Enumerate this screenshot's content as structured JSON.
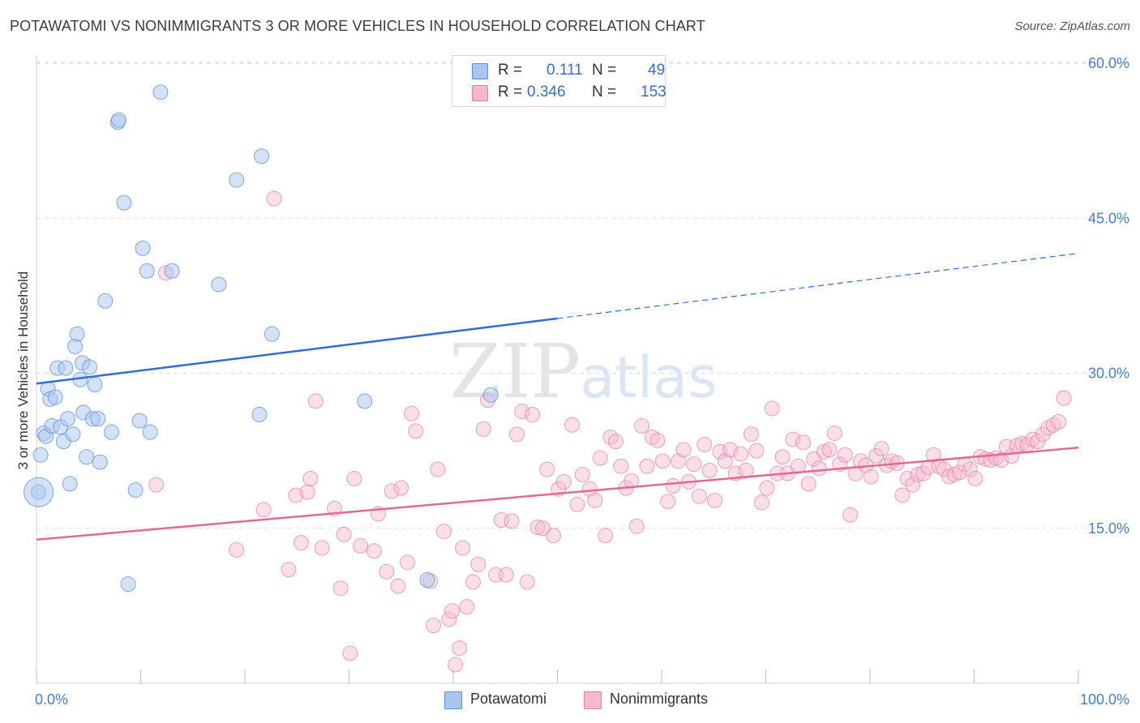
{
  "title": "POTAWATOMI VS NONIMMIGRANTS 3 OR MORE VEHICLES IN HOUSEHOLD CORRELATION CHART",
  "source": "Source: ZipAtlas.com",
  "watermark": {
    "zip": "ZIP",
    "atlas": "atlas"
  },
  "legend_top": [
    {
      "r_key": "R =",
      "r_value": "0.111",
      "n_key": "N =",
      "n_value": "49",
      "color": "#a9c6ef",
      "border": "#5b8fd6"
    },
    {
      "r_key": "R =",
      "r_value": "0.346",
      "n_key": "N =",
      "n_value": "153",
      "color": "#f6b9cb",
      "border": "#e27fa0"
    }
  ],
  "legend_bottom": [
    {
      "label": "Potawatomi",
      "color": "#a9c6ef",
      "border": "#5b8fd6"
    },
    {
      "label": "Nonimmigrants",
      "color": "#f6b9cb",
      "border": "#e27fa0"
    }
  ],
  "chart_data": {
    "type": "scatter",
    "xlabel": "",
    "ylabel": "3 or more Vehicles in Household",
    "xlim": [
      0,
      100
    ],
    "ylim": [
      0,
      60
    ],
    "x_tick_labels": [
      {
        "value": 0,
        "label": "0.0%"
      },
      {
        "value": 100,
        "label": "100.0%"
      }
    ],
    "y_tick_labels": [
      {
        "value": 15,
        "label": "15.0%"
      },
      {
        "value": 30,
        "label": "30.0%"
      },
      {
        "value": 45,
        "label": "45.0%"
      },
      {
        "value": 60,
        "label": "60.0%"
      }
    ],
    "grid": true,
    "legend_position": "top-center",
    "series": [
      {
        "name": "Potawatomi",
        "color": "#a9c6ef",
        "stroke": "#5b8fd6",
        "line_color": "#2f6fcf",
        "trend": {
          "x0": 0,
          "y0": 29.0,
          "x1": 50,
          "y1": 35.3,
          "x_end": 100,
          "y_end": 41.6
        },
        "points": [
          [
            0.2,
            18.5
          ],
          [
            0.4,
            22.1
          ],
          [
            0.7,
            24.2
          ],
          [
            0.9,
            23.9
          ],
          [
            1.1,
            28.5
          ],
          [
            1.3,
            27.5
          ],
          [
            1.5,
            24.9
          ],
          [
            1.8,
            27.7
          ],
          [
            2.0,
            30.5
          ],
          [
            2.3,
            24.8
          ],
          [
            2.6,
            23.4
          ],
          [
            2.8,
            30.5
          ],
          [
            3.0,
            25.6
          ],
          [
            3.2,
            19.3
          ],
          [
            3.5,
            24.1
          ],
          [
            3.7,
            32.6
          ],
          [
            3.9,
            33.8
          ],
          [
            4.2,
            29.4
          ],
          [
            4.4,
            31.0
          ],
          [
            4.5,
            26.2
          ],
          [
            4.8,
            21.9
          ],
          [
            5.1,
            30.6
          ],
          [
            5.4,
            25.6
          ],
          [
            5.6,
            28.9
          ],
          [
            5.9,
            25.6
          ],
          [
            6.1,
            21.4
          ],
          [
            6.6,
            37.0
          ],
          [
            7.2,
            24.3
          ],
          [
            7.8,
            54.3
          ],
          [
            7.9,
            54.5
          ],
          [
            8.4,
            46.5
          ],
          [
            8.8,
            9.6
          ],
          [
            9.5,
            18.7
          ],
          [
            9.9,
            25.4
          ],
          [
            10.2,
            42.1
          ],
          [
            10.6,
            39.9
          ],
          [
            10.9,
            24.3
          ],
          [
            11.9,
            57.2
          ],
          [
            13.0,
            39.9
          ],
          [
            17.5,
            38.6
          ],
          [
            19.2,
            48.7
          ],
          [
            21.4,
            26.0
          ],
          [
            21.6,
            51.0
          ],
          [
            22.6,
            33.8
          ],
          [
            31.5,
            27.3
          ],
          [
            37.5,
            10.0
          ],
          [
            43.6,
            27.9
          ]
        ]
      },
      {
        "name": "Nonimmigrants",
        "color": "#f6b9cb",
        "stroke": "#e27fa0",
        "line_color": "#e06a93",
        "trend": {
          "x0": 0,
          "y0": 13.9,
          "x1": 100,
          "y1": 22.8
        },
        "points": [
          [
            11.5,
            19.2
          ],
          [
            12.4,
            39.7
          ],
          [
            19.2,
            12.9
          ],
          [
            21.8,
            16.8
          ],
          [
            22.8,
            46.9
          ],
          [
            24.2,
            11.0
          ],
          [
            24.9,
            18.2
          ],
          [
            25.4,
            13.6
          ],
          [
            26.0,
            18.5
          ],
          [
            26.3,
            19.8
          ],
          [
            26.8,
            27.3
          ],
          [
            27.4,
            13.1
          ],
          [
            28.6,
            16.9
          ],
          [
            29.2,
            9.2
          ],
          [
            29.5,
            14.4
          ],
          [
            30.1,
            2.9
          ],
          [
            30.5,
            19.8
          ],
          [
            31.1,
            13.3
          ],
          [
            32.4,
            12.8
          ],
          [
            32.8,
            16.4
          ],
          [
            33.6,
            10.8
          ],
          [
            34.1,
            18.6
          ],
          [
            34.7,
            9.4
          ],
          [
            35.0,
            18.9
          ],
          [
            35.6,
            11.7
          ],
          [
            36.0,
            26.1
          ],
          [
            36.4,
            24.4
          ],
          [
            37.8,
            9.9
          ],
          [
            38.1,
            5.6
          ],
          [
            38.5,
            20.7
          ],
          [
            39.1,
            14.7
          ],
          [
            39.6,
            6.2
          ],
          [
            39.9,
            7.0
          ],
          [
            40.2,
            1.8
          ],
          [
            40.6,
            3.4
          ],
          [
            40.9,
            13.1
          ],
          [
            41.3,
            7.4
          ],
          [
            41.9,
            9.8
          ],
          [
            42.4,
            11.5
          ],
          [
            42.9,
            24.6
          ],
          [
            43.3,
            27.4
          ],
          [
            44.1,
            10.5
          ],
          [
            44.6,
            15.8
          ],
          [
            45.1,
            10.5
          ],
          [
            45.6,
            15.7
          ],
          [
            46.1,
            24.1
          ],
          [
            46.6,
            26.3
          ],
          [
            47.1,
            9.8
          ],
          [
            47.6,
            26.0
          ],
          [
            48.1,
            15.1
          ],
          [
            48.6,
            15.0
          ],
          [
            49.0,
            20.7
          ],
          [
            49.6,
            14.3
          ],
          [
            50.1,
            18.8
          ],
          [
            50.6,
            19.5
          ],
          [
            51.4,
            25.0
          ],
          [
            51.9,
            17.3
          ],
          [
            52.4,
            20.2
          ],
          [
            53.1,
            18.8
          ],
          [
            53.6,
            17.7
          ],
          [
            54.1,
            21.8
          ],
          [
            54.6,
            14.3
          ],
          [
            55.1,
            23.8
          ],
          [
            55.6,
            23.4
          ],
          [
            56.1,
            21.0
          ],
          [
            56.6,
            18.9
          ],
          [
            57.1,
            19.6
          ],
          [
            57.6,
            15.2
          ],
          [
            58.1,
            24.9
          ],
          [
            58.6,
            21.0
          ],
          [
            59.1,
            23.8
          ],
          [
            59.6,
            23.5
          ],
          [
            60.1,
            21.5
          ],
          [
            60.6,
            17.6
          ],
          [
            61.1,
            19.1
          ],
          [
            61.6,
            21.5
          ],
          [
            62.1,
            22.6
          ],
          [
            62.6,
            19.5
          ],
          [
            63.1,
            21.2
          ],
          [
            63.6,
            18.1
          ],
          [
            64.1,
            23.1
          ],
          [
            64.6,
            20.6
          ],
          [
            65.1,
            17.7
          ],
          [
            65.6,
            22.4
          ],
          [
            66.1,
            21.5
          ],
          [
            66.6,
            22.6
          ],
          [
            67.1,
            20.3
          ],
          [
            67.6,
            22.2
          ],
          [
            68.1,
            20.6
          ],
          [
            68.6,
            24.1
          ],
          [
            69.1,
            22.5
          ],
          [
            69.6,
            17.5
          ],
          [
            70.1,
            18.9
          ],
          [
            70.6,
            26.6
          ],
          [
            71.1,
            20.3
          ],
          [
            71.6,
            21.9
          ],
          [
            72.1,
            20.3
          ],
          [
            72.6,
            23.6
          ],
          [
            73.1,
            21.0
          ],
          [
            73.6,
            23.3
          ],
          [
            74.1,
            19.3
          ],
          [
            74.6,
            21.7
          ],
          [
            75.1,
            20.8
          ],
          [
            75.6,
            22.4
          ],
          [
            76.1,
            22.6
          ],
          [
            76.6,
            24.2
          ],
          [
            77.1,
            21.2
          ],
          [
            77.6,
            22.1
          ],
          [
            78.1,
            16.3
          ],
          [
            78.6,
            20.3
          ],
          [
            79.1,
            21.5
          ],
          [
            79.6,
            21.1
          ],
          [
            80.1,
            20.0
          ],
          [
            80.6,
            22.0
          ],
          [
            81.1,
            22.7
          ],
          [
            81.6,
            21.1
          ],
          [
            82.1,
            21.5
          ],
          [
            82.6,
            21.3
          ],
          [
            83.1,
            18.2
          ],
          [
            83.6,
            19.8
          ],
          [
            84.1,
            19.2
          ],
          [
            84.6,
            20.2
          ],
          [
            85.1,
            20.3
          ],
          [
            85.6,
            20.9
          ],
          [
            86.1,
            22.1
          ],
          [
            86.6,
            21.0
          ],
          [
            87.1,
            20.7
          ],
          [
            87.6,
            20.0
          ],
          [
            88.1,
            20.2
          ],
          [
            88.6,
            20.4
          ],
          [
            89.1,
            21.2
          ],
          [
            89.6,
            20.7
          ],
          [
            90.1,
            19.8
          ],
          [
            90.6,
            21.9
          ],
          [
            91.1,
            21.7
          ],
          [
            91.6,
            21.6
          ],
          [
            92.1,
            21.8
          ],
          [
            92.6,
            21.6
          ],
          [
            93.1,
            22.9
          ],
          [
            93.6,
            22.0
          ],
          [
            94.1,
            23.0
          ],
          [
            94.6,
            23.2
          ],
          [
            95.1,
            23.1
          ],
          [
            95.6,
            23.6
          ],
          [
            96.1,
            23.4
          ],
          [
            96.6,
            24.1
          ],
          [
            97.1,
            24.7
          ],
          [
            97.6,
            25.0
          ],
          [
            98.1,
            25.3
          ],
          [
            98.6,
            27.6
          ]
        ]
      }
    ]
  }
}
